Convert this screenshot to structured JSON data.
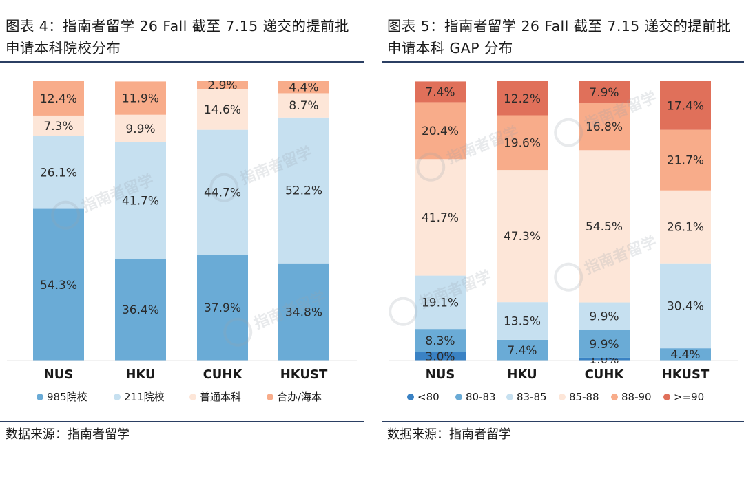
{
  "left_panel": {
    "title": "图表 4：指南者留学 26 Fall 截至 7.15 递交的提前批申请本科院校分布",
    "source": "数据来源：指南者留学"
  },
  "right_panel": {
    "title": "图表 5：指南者留学 26 Fall 截至 7.15 递交的提前批申请本科 GAP 分布",
    "source": "数据来源：指南者留学"
  },
  "watermark": "指南者留学",
  "chart_data": [
    {
      "type": "bar",
      "stacked": true,
      "percent": true,
      "categories": [
        "NUS",
        "HKU",
        "CUHK",
        "HKUST"
      ],
      "series": [
        {
          "name": "985院校",
          "color": "#6aabd6",
          "values": [
            54.3,
            36.4,
            37.9,
            34.8
          ]
        },
        {
          "name": "211院校",
          "color": "#c6e0f0",
          "values": [
            26.1,
            41.7,
            44.7,
            52.2
          ]
        },
        {
          "name": "普通本科",
          "color": "#fde6d8",
          "values": [
            7.3,
            9.9,
            14.6,
            8.7
          ]
        },
        {
          "name": "合办/海本",
          "color": "#f8ac8a",
          "values": [
            12.4,
            11.9,
            2.9,
            4.4
          ]
        }
      ],
      "ylim": [
        0,
        100
      ],
      "legend_position": "bottom",
      "grid": false
    },
    {
      "type": "bar",
      "stacked": true,
      "percent": true,
      "categories": [
        "NUS",
        "HKU",
        "CUHK",
        "HKUST"
      ],
      "series": [
        {
          "name": "<80",
          "color": "#3a82c4",
          "values": [
            3.0,
            0,
            1.0,
            0
          ]
        },
        {
          "name": "80-83",
          "color": "#6aabd6",
          "values": [
            8.3,
            7.4,
            9.9,
            4.4
          ]
        },
        {
          "name": "83-85",
          "color": "#c6e0f0",
          "values": [
            19.1,
            13.5,
            9.9,
            30.4
          ]
        },
        {
          "name": "85-88",
          "color": "#fde6d8",
          "values": [
            41.7,
            47.3,
            54.5,
            26.1
          ]
        },
        {
          "name": "88-90",
          "color": "#f8ac8a",
          "values": [
            20.4,
            19.6,
            16.8,
            21.7
          ]
        },
        {
          "name": ">=90",
          "color": "#e0705a",
          "values": [
            7.4,
            12.2,
            7.9,
            17.4
          ]
        }
      ],
      "ylim": [
        0,
        100
      ],
      "legend_position": "bottom",
      "grid": false
    }
  ]
}
